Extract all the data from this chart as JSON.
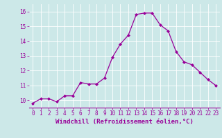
{
  "x": [
    0,
    1,
    2,
    3,
    4,
    5,
    6,
    7,
    8,
    9,
    10,
    11,
    12,
    13,
    14,
    15,
    16,
    17,
    18,
    19,
    20,
    21,
    22,
    23
  ],
  "y": [
    9.8,
    10.1,
    10.1,
    9.9,
    10.3,
    10.3,
    11.2,
    11.1,
    11.1,
    11.5,
    12.9,
    13.8,
    14.4,
    15.8,
    15.9,
    15.9,
    15.1,
    14.7,
    13.3,
    12.6,
    12.4,
    11.9,
    11.4,
    11.0
  ],
  "line_color": "#990099",
  "marker": "D",
  "markersize": 2.0,
  "linewidth": 0.9,
  "xlabel": "Windchill (Refroidissement éolien,°C)",
  "xlabel_fontsize": 6.5,
  "ylabel_ticks": [
    10,
    11,
    12,
    13,
    14,
    15,
    16
  ],
  "xlim": [
    -0.5,
    23.5
  ],
  "ylim": [
    9.5,
    16.5
  ],
  "bg_color": "#cce8e8",
  "grid_color": "#ffffff",
  "tick_label_color": "#990099",
  "tick_fontsize": 5.5
}
